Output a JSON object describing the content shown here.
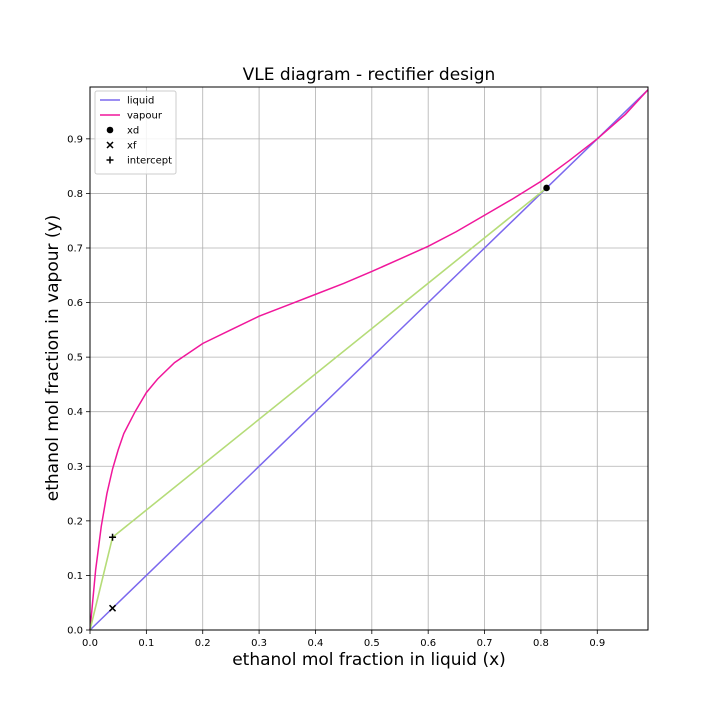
{
  "chart_data": {
    "type": "line",
    "title": "VLE diagram - rectifier design",
    "xlabel": "ethanol mol fraction in liquid (x)",
    "ylabel": "ethanol mol fraction in vapour (y)",
    "xlim": [
      0.0,
      0.99
    ],
    "ylim": [
      0.0,
      0.995
    ],
    "xticks": [
      "0.0",
      "0.1",
      "0.2",
      "0.3",
      "0.4",
      "0.5",
      "0.6",
      "0.7",
      "0.8",
      "0.9"
    ],
    "yticks": [
      "0.0",
      "0.1",
      "0.2",
      "0.3",
      "0.4",
      "0.5",
      "0.6",
      "0.7",
      "0.8",
      "0.9"
    ],
    "grid": true,
    "legend_position": "top-left",
    "series": [
      {
        "name": "liquid",
        "type": "line",
        "color": "#7b68ee",
        "x": [
          0.0,
          0.99
        ],
        "y": [
          0.0,
          0.99
        ]
      },
      {
        "name": "vapour",
        "type": "line",
        "color": "#f0179b",
        "x": [
          0.0,
          0.01,
          0.02,
          0.03,
          0.04,
          0.05,
          0.06,
          0.08,
          0.1,
          0.12,
          0.15,
          0.2,
          0.25,
          0.3,
          0.35,
          0.4,
          0.45,
          0.5,
          0.55,
          0.6,
          0.65,
          0.7,
          0.75,
          0.8,
          0.85,
          0.9,
          0.95,
          0.99
        ],
        "y": [
          0.0,
          0.11,
          0.19,
          0.25,
          0.295,
          0.33,
          0.36,
          0.4,
          0.435,
          0.46,
          0.49,
          0.525,
          0.55,
          0.575,
          0.595,
          0.615,
          0.635,
          0.657,
          0.68,
          0.703,
          0.73,
          0.76,
          0.79,
          0.822,
          0.86,
          0.9,
          0.945,
          0.99
        ]
      },
      {
        "name": "xd",
        "type": "scatter",
        "marker": "circle",
        "color": "#000000",
        "x": [
          0.81
        ],
        "y": [
          0.81
        ]
      },
      {
        "name": "xf",
        "type": "scatter",
        "marker": "x",
        "color": "#000000",
        "x": [
          0.04
        ],
        "y": [
          0.04
        ]
      },
      {
        "name": "intercept",
        "type": "scatter",
        "marker": "plus",
        "color": "#000000",
        "x": [
          0.04
        ],
        "y": [
          0.17
        ]
      }
    ],
    "operating_lines": [
      {
        "color": "#b5dc78",
        "x": [
          0.0,
          0.04
        ],
        "y": [
          0.0,
          0.17
        ]
      },
      {
        "color": "#b5dc78",
        "x": [
          0.04,
          0.81
        ],
        "y": [
          0.17,
          0.81
        ]
      }
    ]
  }
}
